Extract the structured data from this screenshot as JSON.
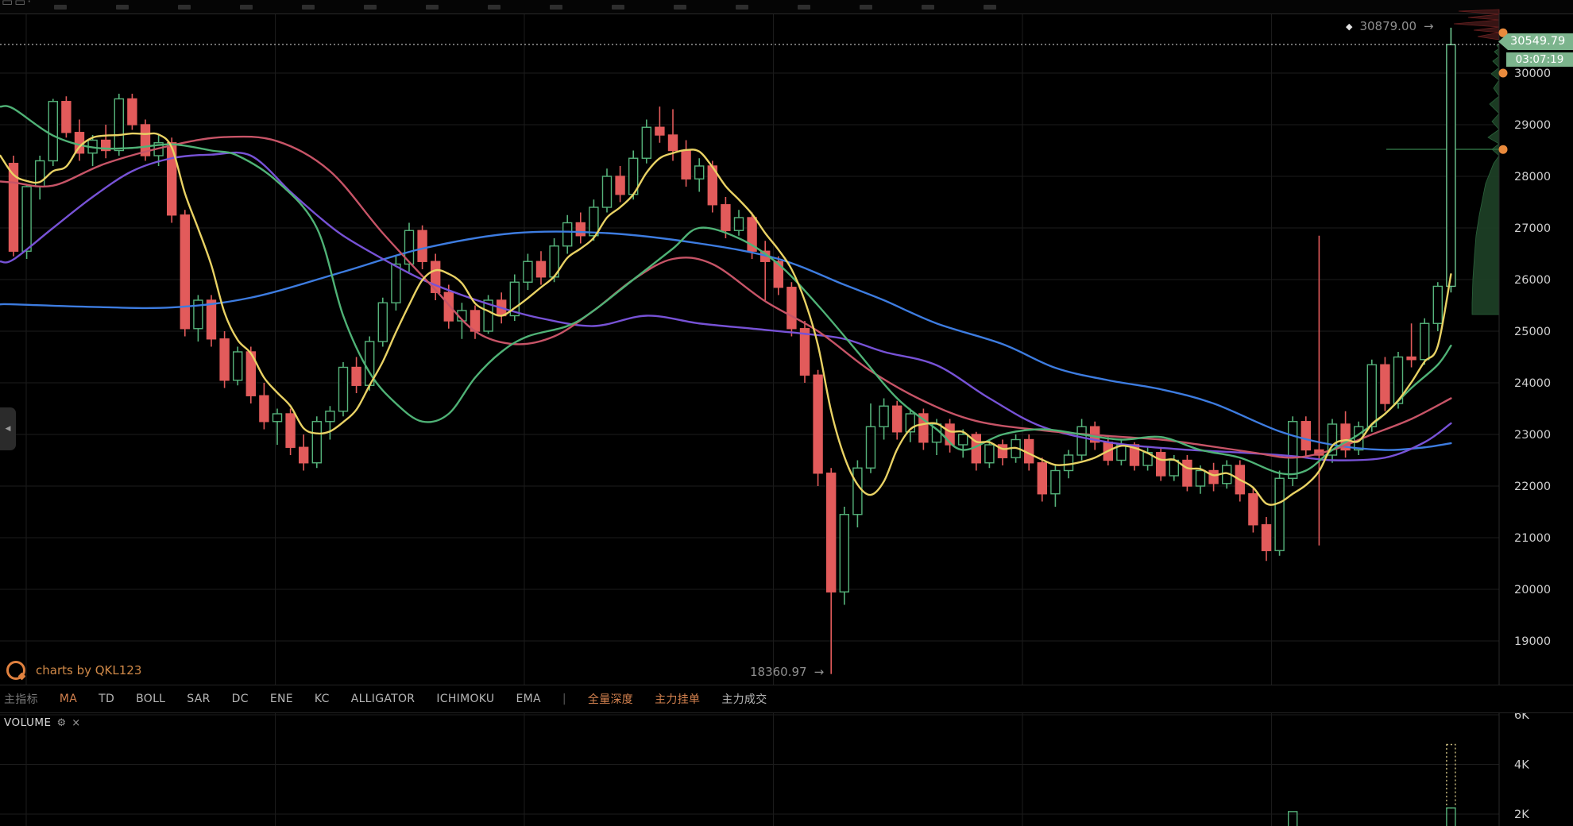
{
  "app": {
    "watermark_text": "charts by QKL123"
  },
  "icons": {
    "arrow_right": "→",
    "diamond": "◆",
    "gear": "⚙",
    "close": "×",
    "collapse_left": "◀"
  },
  "price_axis": {
    "current_price": "30549.79",
    "countdown": "03:07:19"
  },
  "markers": {
    "high_label": "30879.00",
    "low_label": "18360.97"
  },
  "tabs": [
    {
      "label": "主指标",
      "style": "dim"
    },
    {
      "label": "MA",
      "style": "active"
    },
    {
      "label": "TD",
      "style": "normal"
    },
    {
      "label": "BOLL",
      "style": "normal"
    },
    {
      "label": "SAR",
      "style": "normal"
    },
    {
      "label": "DC",
      "style": "normal"
    },
    {
      "label": "ENE",
      "style": "normal"
    },
    {
      "label": "KC",
      "style": "normal"
    },
    {
      "label": "ALLIGATOR",
      "style": "normal"
    },
    {
      "label": "ICHIMOKU",
      "style": "normal"
    },
    {
      "label": "EMA",
      "style": "normal"
    },
    {
      "label": "|",
      "style": "sep"
    },
    {
      "label": "全量深度",
      "style": "active"
    },
    {
      "label": "主力挂单",
      "style": "active"
    },
    {
      "label": "主力成交",
      "style": "normal"
    }
  ],
  "volume_pane": {
    "title": "VOLUME"
  },
  "colors": {
    "up": "#55b27a",
    "up_bright": "#6fc892",
    "down": "#e25b5b",
    "ma_yellow": "#e9d264",
    "ma_green": "#4fb276",
    "ma_rose": "#c75467",
    "ma_purple": "#7752d6",
    "ma_blue": "#3d7ce0",
    "grid": "#1b1b1b",
    "border": "#2a2a2a",
    "axis_text": "#cfcfcf",
    "muted_text": "#8f8f8f",
    "accent_orange": "#d4824f",
    "tag_green": "#7cb48d",
    "marker_orange": "#e98a3c",
    "depth_bid_fill": "#1e4027",
    "depth_bid_line": "#2e6b40",
    "depth_ask_fill": "#3a1616",
    "depth_ask_line": "#702222",
    "dashed_vol": "#cfc183",
    "price_line": "#e0e0e0"
  },
  "chart_data": {
    "type": "candlestick",
    "title": "",
    "xlabel": "",
    "ylabel": "",
    "legend_position": "none",
    "grid": true,
    "price_axis_side": "right",
    "visible_price_range": [
      18300,
      31100
    ],
    "price_ticks": [
      30000,
      29000,
      28000,
      27000,
      26000,
      25000,
      24000,
      23000,
      22000,
      21000,
      20000,
      19000
    ],
    "volume_ticks": [
      6000,
      4000,
      2000
    ],
    "high_value": 30879.0,
    "low_value": 18360.97,
    "last_price": 30549.79,
    "candles": [
      [
        28250,
        28400,
        26450,
        26550
      ],
      [
        26550,
        27850,
        26400,
        27800
      ],
      [
        27800,
        28400,
        27550,
        28300
      ],
      [
        28300,
        29500,
        28200,
        29450
      ],
      [
        29450,
        29550,
        28750,
        28850
      ],
      [
        28850,
        29100,
        28300,
        28450
      ],
      [
        28450,
        28800,
        28200,
        28700
      ],
      [
        28700,
        29000,
        28350,
        28500
      ],
      [
        28500,
        29600,
        28400,
        29500
      ],
      [
        29500,
        29600,
        28900,
        29000
      ],
      [
        29000,
        29100,
        28300,
        28400
      ],
      [
        28400,
        28800,
        28200,
        28650
      ],
      [
        28650,
        28750,
        27100,
        27250
      ],
      [
        27250,
        27350,
        24900,
        25050
      ],
      [
        25050,
        25700,
        24800,
        25600
      ],
      [
        25600,
        25700,
        24700,
        24850
      ],
      [
        24850,
        25000,
        23900,
        24050
      ],
      [
        24050,
        24700,
        23950,
        24600
      ],
      [
        24600,
        24700,
        23600,
        23750
      ],
      [
        23750,
        24000,
        23100,
        23250
      ],
      [
        23250,
        23500,
        22800,
        23400
      ],
      [
        23400,
        23500,
        22600,
        22750
      ],
      [
        22750,
        23000,
        22300,
        22450
      ],
      [
        22450,
        23350,
        22350,
        23250
      ],
      [
        23250,
        23550,
        22900,
        23450
      ],
      [
        23450,
        24400,
        23350,
        24300
      ],
      [
        24300,
        24500,
        23800,
        23950
      ],
      [
        23950,
        24900,
        23850,
        24800
      ],
      [
        24800,
        25650,
        24700,
        25550
      ],
      [
        25550,
        26450,
        25400,
        26300
      ],
      [
        26300,
        27100,
        26150,
        26950
      ],
      [
        26950,
        27050,
        26200,
        26350
      ],
      [
        26350,
        26500,
        25600,
        25750
      ],
      [
        25750,
        25900,
        25050,
        25200
      ],
      [
        25200,
        25550,
        24850,
        25400
      ],
      [
        25400,
        25500,
        24850,
        25000
      ],
      [
        25000,
        25700,
        24950,
        25600
      ],
      [
        25600,
        25750,
        25150,
        25300
      ],
      [
        25300,
        26100,
        25200,
        25950
      ],
      [
        25950,
        26500,
        25800,
        26350
      ],
      [
        26350,
        26550,
        25900,
        26050
      ],
      [
        26050,
        26800,
        25950,
        26650
      ],
      [
        26650,
        27250,
        26500,
        27100
      ],
      [
        27100,
        27300,
        26700,
        26850
      ],
      [
        26850,
        27550,
        26750,
        27400
      ],
      [
        27400,
        28150,
        27300,
        28000
      ],
      [
        28000,
        28200,
        27500,
        27650
      ],
      [
        27650,
        28500,
        27550,
        28350
      ],
      [
        28350,
        29100,
        28250,
        28950
      ],
      [
        28950,
        29350,
        28650,
        28800
      ],
      [
        28800,
        29300,
        28300,
        28500
      ],
      [
        28500,
        28700,
        27800,
        27950
      ],
      [
        27950,
        28350,
        27700,
        28200
      ],
      [
        28200,
        28300,
        27300,
        27450
      ],
      [
        27450,
        27600,
        26800,
        26950
      ],
      [
        26950,
        27350,
        26850,
        27200
      ],
      [
        27200,
        27300,
        26400,
        26550
      ],
      [
        26550,
        26750,
        25600,
        26350
      ],
      [
        26350,
        26450,
        25700,
        25850
      ],
      [
        25850,
        25950,
        24900,
        25050
      ],
      [
        25050,
        25200,
        24000,
        24150
      ],
      [
        24150,
        24250,
        22000,
        22250
      ],
      [
        22250,
        22350,
        18360,
        19950
      ],
      [
        19950,
        21600,
        19700,
        21450
      ],
      [
        21450,
        22500,
        21200,
        22350
      ],
      [
        22350,
        23600,
        22250,
        23150
      ],
      [
        23150,
        23700,
        22900,
        23550
      ],
      [
        23550,
        23650,
        22900,
        23050
      ],
      [
        23050,
        23500,
        22850,
        23400
      ],
      [
        23400,
        23500,
        22700,
        22850
      ],
      [
        22850,
        23300,
        22600,
        23200
      ],
      [
        23200,
        23300,
        22650,
        22800
      ],
      [
        22800,
        23100,
        22550,
        23000
      ],
      [
        23000,
        23050,
        22300,
        22450
      ],
      [
        22450,
        22900,
        22350,
        22800
      ],
      [
        22800,
        22900,
        22400,
        22550
      ],
      [
        22550,
        23000,
        22450,
        22900
      ],
      [
        22900,
        23000,
        22300,
        22450
      ],
      [
        22450,
        22550,
        21700,
        21850
      ],
      [
        21850,
        22400,
        21600,
        22300
      ],
      [
        22300,
        22700,
        22150,
        22600
      ],
      [
        22600,
        23300,
        22500,
        23150
      ],
      [
        23150,
        23250,
        22700,
        22850
      ],
      [
        22850,
        22950,
        22400,
        22500
      ],
      [
        22500,
        22900,
        22400,
        22800
      ],
      [
        22800,
        22850,
        22300,
        22400
      ],
      [
        22400,
        22750,
        22300,
        22650
      ],
      [
        22650,
        22750,
        22100,
        22200
      ],
      [
        22200,
        22600,
        22100,
        22500
      ],
      [
        22500,
        22600,
        21900,
        22000
      ],
      [
        22000,
        22400,
        21850,
        22300
      ],
      [
        22300,
        22450,
        21900,
        22050
      ],
      [
        22050,
        22500,
        21950,
        22400
      ],
      [
        22400,
        22500,
        21700,
        21850
      ],
      [
        21850,
        21950,
        21100,
        21250
      ],
      [
        21250,
        21400,
        20550,
        20750
      ],
      [
        20750,
        22300,
        20650,
        22150
      ],
      [
        22150,
        23350,
        22000,
        23250
      ],
      [
        23250,
        23350,
        22550,
        22700
      ],
      [
        22700,
        26850,
        20850,
        22600
      ],
      [
        22600,
        23300,
        22450,
        23200
      ],
      [
        23200,
        23450,
        22550,
        22700
      ],
      [
        22700,
        23250,
        22600,
        23150
      ],
      [
        23150,
        24450,
        23050,
        24350
      ],
      [
        24350,
        24500,
        23450,
        23600
      ],
      [
        23600,
        24600,
        23500,
        24500
      ],
      [
        24500,
        25150,
        24300,
        24450
      ],
      [
        24450,
        25250,
        24350,
        25150
      ],
      [
        25150,
        25950,
        25000,
        25870
      ],
      [
        25870,
        30879,
        25750,
        30549.79
      ]
    ],
    "ma_series": [
      {
        "name": "ma-blue",
        "color": "#3d7ce0",
        "points": [
          [
            -1,
            25520
          ],
          [
            0,
            25520
          ],
          [
            6,
            25470
          ],
          [
            12,
            25460
          ],
          [
            18,
            25650
          ],
          [
            25,
            26150
          ],
          [
            31,
            26600
          ],
          [
            38,
            26900
          ],
          [
            45,
            26900
          ],
          [
            52,
            26700
          ],
          [
            58,
            26400
          ],
          [
            63,
            25900
          ],
          [
            66,
            25600
          ],
          [
            70,
            25150
          ],
          [
            75,
            24750
          ],
          [
            79,
            24290
          ],
          [
            83,
            24050
          ],
          [
            87,
            23875
          ],
          [
            91,
            23600
          ],
          [
            96,
            23060
          ],
          [
            100,
            22800
          ],
          [
            104,
            22700
          ],
          [
            107,
            22750
          ],
          [
            109,
            22830
          ]
        ]
      },
      {
        "name": "ma-purple",
        "color": "#7752d6",
        "points": [
          [
            -1,
            26350
          ],
          [
            0,
            26390
          ],
          [
            3,
            27000
          ],
          [
            6,
            27600
          ],
          [
            9,
            28100
          ],
          [
            12,
            28350
          ],
          [
            15,
            28420
          ],
          [
            18,
            28400
          ],
          [
            21,
            27700
          ],
          [
            23,
            27250
          ],
          [
            25,
            26850
          ],
          [
            28,
            26400
          ],
          [
            31,
            26000
          ],
          [
            34,
            25700
          ],
          [
            37,
            25450
          ],
          [
            40,
            25250
          ],
          [
            44,
            25100
          ],
          [
            48,
            25300
          ],
          [
            52,
            25150
          ],
          [
            56,
            25050
          ],
          [
            60,
            24950
          ],
          [
            63,
            24850
          ],
          [
            66,
            24600
          ],
          [
            70,
            24340
          ],
          [
            74,
            23700
          ],
          [
            78,
            23150
          ],
          [
            83,
            22850
          ],
          [
            88,
            22720
          ],
          [
            93,
            22650
          ],
          [
            97,
            22580
          ],
          [
            100,
            22500
          ],
          [
            104,
            22550
          ],
          [
            107,
            22850
          ],
          [
            109,
            23215
          ]
        ]
      },
      {
        "name": "ma-rose",
        "color": "#c75467",
        "points": [
          [
            -1,
            27900
          ],
          [
            0,
            27880
          ],
          [
            3,
            27820
          ],
          [
            7,
            28250
          ],
          [
            12,
            28600
          ],
          [
            16,
            28760
          ],
          [
            20,
            28680
          ],
          [
            24,
            28100
          ],
          [
            28,
            26900
          ],
          [
            32,
            25800
          ],
          [
            35,
            25000
          ],
          [
            38,
            24750
          ],
          [
            41,
            24900
          ],
          [
            44,
            25400
          ],
          [
            47,
            26000
          ],
          [
            50,
            26400
          ],
          [
            53,
            26300
          ],
          [
            57,
            25580
          ],
          [
            61,
            25000
          ],
          [
            65,
            24230
          ],
          [
            69,
            23650
          ],
          [
            73,
            23260
          ],
          [
            78,
            23080
          ],
          [
            83,
            22970
          ],
          [
            87,
            22900
          ],
          [
            90,
            22800
          ],
          [
            94,
            22650
          ],
          [
            97,
            22550
          ],
          [
            100,
            22700
          ],
          [
            103,
            23000
          ],
          [
            106,
            23300
          ],
          [
            109,
            23700
          ]
        ]
      },
      {
        "name": "ma-green",
        "color": "#4fb276",
        "points": [
          [
            -1,
            29350
          ],
          [
            0,
            29310
          ],
          [
            3,
            28790
          ],
          [
            6,
            28560
          ],
          [
            9,
            28550
          ],
          [
            12,
            28620
          ],
          [
            15,
            28500
          ],
          [
            17,
            28400
          ],
          [
            20,
            27900
          ],
          [
            23,
            27000
          ],
          [
            25,
            25300
          ],
          [
            27,
            24200
          ],
          [
            29,
            23600
          ],
          [
            31,
            23250
          ],
          [
            33,
            23400
          ],
          [
            35,
            24100
          ],
          [
            37,
            24600
          ],
          [
            39,
            24900
          ],
          [
            42,
            25100
          ],
          [
            44,
            25400
          ],
          [
            47,
            26000
          ],
          [
            50,
            26600
          ],
          [
            52,
            27000
          ],
          [
            55,
            26800
          ],
          [
            58,
            26300
          ],
          [
            61,
            25500
          ],
          [
            64,
            24600
          ],
          [
            67,
            23700
          ],
          [
            70,
            23100
          ],
          [
            72,
            22700
          ],
          [
            75,
            23000
          ],
          [
            78,
            23100
          ],
          [
            81,
            23000
          ],
          [
            84,
            22900
          ],
          [
            87,
            22950
          ],
          [
            90,
            22700
          ],
          [
            93,
            22550
          ],
          [
            96,
            22250
          ],
          [
            98,
            22300
          ],
          [
            100,
            22700
          ],
          [
            102,
            23000
          ],
          [
            104,
            23400
          ],
          [
            106,
            23900
          ],
          [
            108,
            24350
          ],
          [
            109,
            24720
          ]
        ]
      },
      {
        "name": "ma-yellow",
        "color": "#e9d264",
        "computed": true,
        "period": 5,
        "pad": 28400
      }
    ],
    "volume_bars": [
      {
        "index": 97,
        "value": 2100,
        "style": "solid"
      },
      {
        "index": 109,
        "value": 4800,
        "style": "dashed",
        "solid_value": 2250
      }
    ],
    "axis_order_markers": [
      30780,
      30000,
      28520
    ]
  }
}
